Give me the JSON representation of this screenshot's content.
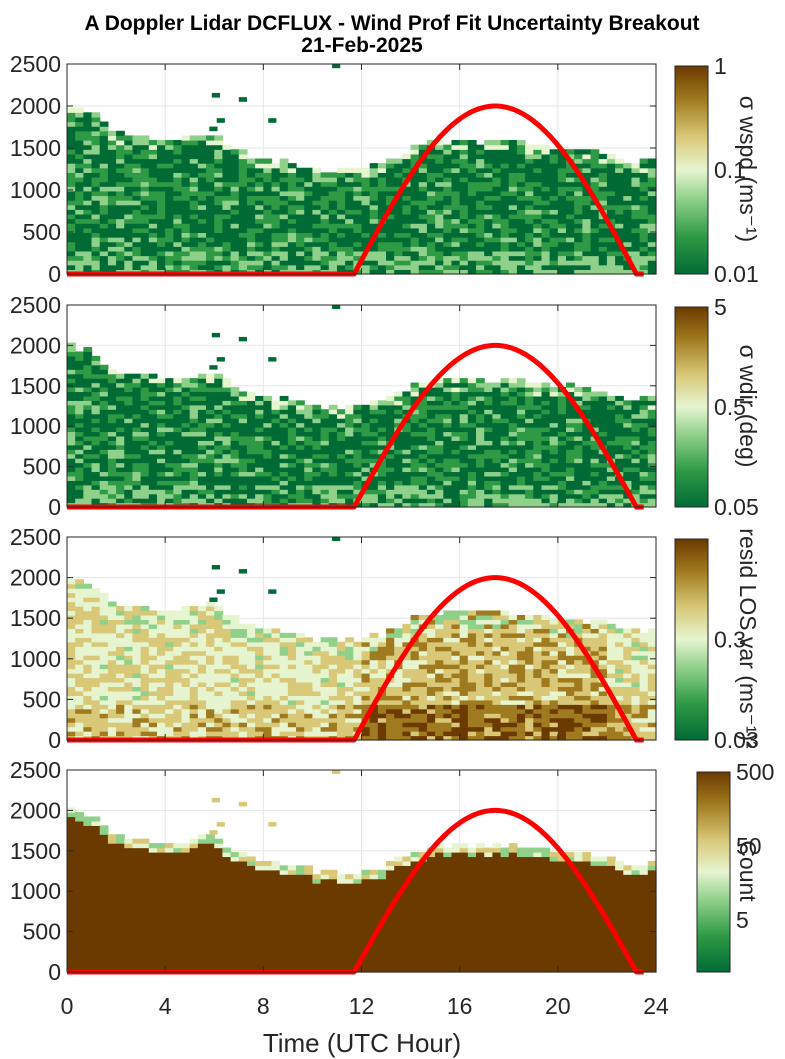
{
  "title_line1": "A Doppler Lidar DCFLUX - Wind Prof Fit Uncertainty Breakout",
  "title_line2": "21-Feb-2025",
  "x_axis": {
    "label": "Time (UTC Hour)",
    "range": [
      0,
      24
    ],
    "ticks": [
      "0",
      "4",
      "8",
      "12",
      "16",
      "20",
      "24"
    ]
  },
  "colors": {
    "sun_curve": "#ff0000",
    "colormap": [
      "#006b35",
      "#2e9a45",
      "#8fd08a",
      "#e6f5d0",
      "#d8c878",
      "#a07a1e",
      "#6b3a00"
    ]
  },
  "chart_data": [
    {
      "type": "heatmap",
      "panel": 1,
      "ylim": [
        0,
        2500
      ],
      "yticks": [
        "0",
        "500",
        "1000",
        "1500",
        "2000",
        "2500"
      ],
      "colorbar": {
        "scale": "log",
        "range": [
          0.01,
          1
        ],
        "tick_labels": [
          "1",
          "0.1",
          "0.01"
        ],
        "label": "σ wspd (ms⁻¹)"
      },
      "data_top_m": [
        2000,
        1900,
        1650,
        1620,
        1550,
        1600,
        1650,
        1450,
        1350,
        1300,
        1230,
        1200,
        1230,
        1300,
        1450,
        1550,
        1560,
        1550,
        1560,
        1520,
        1480,
        1450,
        1400,
        1300,
        1350
      ],
      "typical_value": 0.02,
      "sun_curve_peak": 2000,
      "sun_curve_day": [
        11.7,
        23.2
      ]
    },
    {
      "type": "heatmap",
      "panel": 2,
      "ylim": [
        0,
        2500
      ],
      "yticks": [
        "0",
        "500",
        "1000",
        "1500",
        "2000",
        "2500"
      ],
      "colorbar": {
        "scale": "log",
        "range": [
          0.05,
          5
        ],
        "tick_labels": [
          "5",
          "0.5",
          "0.05"
        ],
        "label": "σ wdir (deg)"
      },
      "data_top_m": [
        2000,
        1900,
        1650,
        1620,
        1550,
        1600,
        1650,
        1450,
        1350,
        1300,
        1230,
        1200,
        1230,
        1300,
        1450,
        1550,
        1560,
        1550,
        1560,
        1520,
        1480,
        1450,
        1400,
        1300,
        1350
      ],
      "typical_value": 0.08,
      "sun_curve_peak": 2000,
      "sun_curve_day": [
        11.7,
        23.2
      ]
    },
    {
      "type": "heatmap",
      "panel": 3,
      "ylim": [
        0,
        2500
      ],
      "yticks": [
        "0",
        "500",
        "1000",
        "1500",
        "2000",
        "2500"
      ],
      "colorbar": {
        "scale": "log",
        "range": [
          0.03,
          3
        ],
        "tick_labels": [
          "0.3",
          "0.03"
        ],
        "label": "resid LOS var (ms⁻¹)²"
      },
      "data_top_m": [
        2000,
        1900,
        1650,
        1620,
        1550,
        1600,
        1650,
        1450,
        1350,
        1300,
        1230,
        1200,
        1230,
        1300,
        1450,
        1550,
        1560,
        1550,
        1560,
        1520,
        1480,
        1450,
        1400,
        1300,
        1350
      ],
      "typical_value": 0.5,
      "sun_curve_peak": 2000,
      "sun_curve_day": [
        11.7,
        23.2
      ]
    },
    {
      "type": "heatmap",
      "panel": 4,
      "ylim": [
        0,
        2500
      ],
      "yticks": [
        "0",
        "500",
        "1000",
        "1500",
        "2000",
        "2500"
      ],
      "colorbar": {
        "scale": "log",
        "range": [
          1,
          500
        ],
        "tick_labels": [
          "500",
          "50",
          "5"
        ],
        "label": "Count"
      },
      "data_top_m": [
        2000,
        1900,
        1650,
        1620,
        1550,
        1600,
        1650,
        1450,
        1350,
        1300,
        1230,
        1200,
        1230,
        1300,
        1450,
        1550,
        1560,
        1550,
        1560,
        1520,
        1480,
        1450,
        1400,
        1300,
        1350
      ],
      "typical_value": 500,
      "sun_curve_peak": 2000,
      "sun_curve_day": [
        11.7,
        23.2
      ]
    }
  ]
}
